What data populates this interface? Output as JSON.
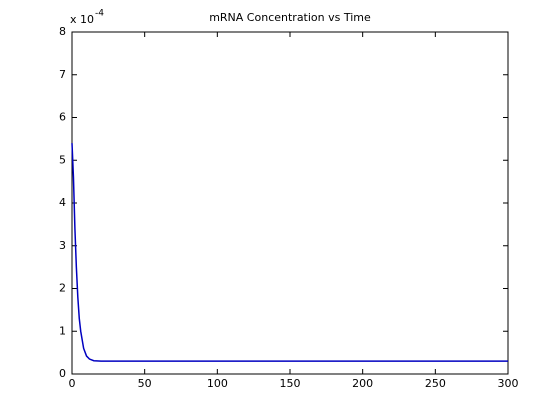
{
  "chart_data": {
    "type": "line",
    "title": "mRNA Concentration vs Time",
    "y_exponent": {
      "base": "x 10",
      "power": "-4"
    },
    "x": [
      0,
      1,
      2,
      3,
      4,
      5,
      6,
      8,
      10,
      12,
      15,
      20,
      50,
      300
    ],
    "series": [
      {
        "name": "mRNA",
        "color": "#0000c0",
        "values": [
          5.4,
          4.6,
          3.4,
          2.5,
          1.8,
          1.3,
          1.0,
          0.6,
          0.42,
          0.35,
          0.31,
          0.3,
          0.3,
          0.3
        ]
      }
    ],
    "xlim": [
      0,
      300
    ],
    "xticks": [
      0,
      50,
      100,
      150,
      200,
      250,
      300
    ],
    "ylim": [
      0,
      8
    ],
    "yticks": [
      0,
      1,
      2,
      3,
      4,
      5,
      6,
      7,
      8
    ],
    "grid": false
  }
}
